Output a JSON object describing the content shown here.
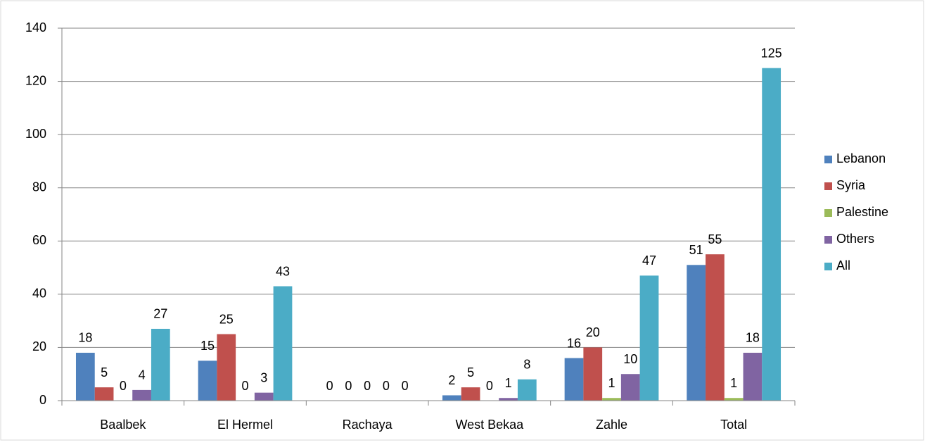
{
  "chart_data": {
    "type": "bar",
    "categories": [
      "Baalbek",
      "El Hermel",
      "Rachaya",
      "West Bekaa",
      "Zahle",
      "Total"
    ],
    "series": [
      {
        "name": "Lebanon",
        "color": "#4f81bd",
        "values": [
          18,
          15,
          0,
          2,
          16,
          51
        ]
      },
      {
        "name": "Syria",
        "color": "#c0504d",
        "values": [
          5,
          25,
          0,
          5,
          20,
          55
        ]
      },
      {
        "name": "Palestine",
        "color": "#9bbb59",
        "values": [
          0,
          0,
          0,
          0,
          1,
          1
        ]
      },
      {
        "name": "Others",
        "color": "#8064a2",
        "values": [
          4,
          3,
          0,
          1,
          10,
          18
        ]
      },
      {
        "name": "All",
        "color": "#4bacc6",
        "values": [
          27,
          43,
          0,
          8,
          47,
          125
        ]
      }
    ],
    "ylim": [
      0,
      140
    ],
    "yticks": [
      0,
      20,
      40,
      60,
      80,
      100,
      120,
      140
    ],
    "grid": true,
    "legend": "right"
  }
}
